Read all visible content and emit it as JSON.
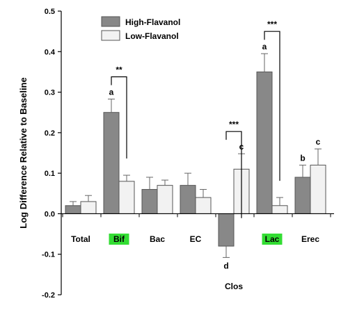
{
  "chart_data": {
    "type": "bar",
    "ylabel": "Log Difference Relative to Baseline",
    "ylim": [
      -0.2,
      0.5
    ],
    "yticks": [
      "-0.2",
      "-0.1",
      "0.0",
      "0.1",
      "0.2",
      "0.3",
      "0.4",
      "0.5"
    ],
    "categories": [
      "Total",
      "Bif",
      "Bac",
      "EC",
      "Clos",
      "Lac",
      "Erec"
    ],
    "highlighted_categories": [
      "Bif",
      "Lac"
    ],
    "highlight_color": "#33dd33",
    "legend_position": "top-left",
    "series": [
      {
        "name": "High-Flavanol",
        "color": "#888888",
        "values": [
          0.02,
          0.25,
          0.06,
          0.07,
          -0.08,
          0.35,
          0.09
        ],
        "errors": [
          0.01,
          0.033,
          0.03,
          0.03,
          0.028,
          0.045,
          0.03
        ],
        "letters": [
          "",
          "a",
          "",
          "",
          "d",
          "a",
          "b"
        ]
      },
      {
        "name": "Low-Flavanol",
        "color": "#f2f2f2",
        "values": [
          0.03,
          0.08,
          0.07,
          0.04,
          0.11,
          0.02,
          0.12
        ],
        "errors": [
          0.015,
          0.015,
          0.013,
          0.02,
          0.038,
          0.02,
          0.04
        ],
        "letters": [
          "",
          "",
          "",
          "",
          "c",
          "",
          "c"
        ]
      }
    ],
    "significance": [
      {
        "category": "Bif",
        "label": "**"
      },
      {
        "category": "Clos",
        "label": "***"
      },
      {
        "category": "Lac",
        "label": "***"
      }
    ]
  }
}
